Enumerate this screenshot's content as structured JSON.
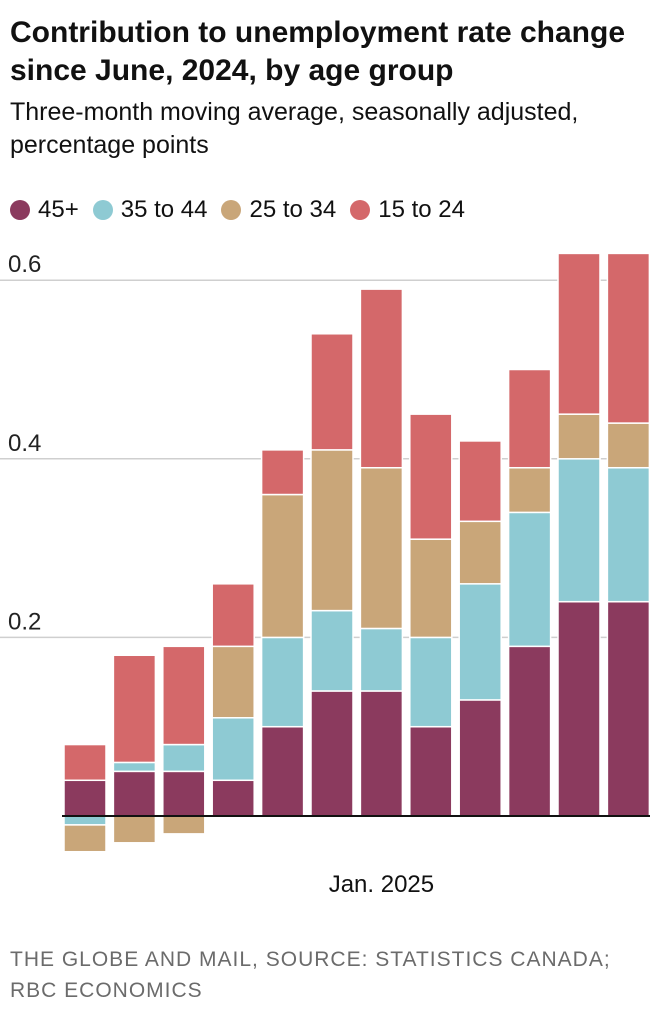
{
  "chart_data": {
    "type": "bar",
    "stacked": true,
    "title": "Contribution to unemployment rate change since June, 2024, by age group",
    "subtitle": "Three-month moving average, seasonally adjusted, percentage points",
    "x_tick_labels": [
      "Jan. 2025"
    ],
    "x_tick_index": 6,
    "ylim": [
      -0.05,
      0.65
    ],
    "y_ticks": [
      0.2,
      0.4,
      0.6
    ],
    "y_tick_labels": [
      "0.2",
      "0.4",
      "0.6"
    ],
    "grid": true,
    "legend_position": "top",
    "categories": [
      "",
      "",
      "",
      "",
      "",
      "",
      "",
      "",
      "",
      "",
      "",
      ""
    ],
    "series": [
      {
        "name": "45+",
        "color": "#8b3a5e",
        "values": [
          0.04,
          0.05,
          0.05,
          0.04,
          0.1,
          0.14,
          0.14,
          0.1,
          0.13,
          0.19,
          0.24,
          0.24
        ]
      },
      {
        "name": "35 to 44",
        "color": "#8ecad3",
        "values": [
          -0.01,
          0.01,
          0.03,
          0.07,
          0.1,
          0.09,
          0.07,
          0.1,
          0.13,
          0.15,
          0.16,
          0.15
        ]
      },
      {
        "name": "25 to 34",
        "color": "#c9a679",
        "values": [
          -0.03,
          -0.03,
          -0.02,
          0.08,
          0.16,
          0.18,
          0.18,
          0.11,
          0.07,
          0.05,
          0.05,
          0.05
        ]
      },
      {
        "name": "15 to 24",
        "color": "#d4686a",
        "values": [
          0.04,
          0.12,
          0.11,
          0.07,
          0.05,
          0.13,
          0.2,
          0.14,
          0.09,
          0.11,
          0.18,
          0.19
        ]
      }
    ]
  },
  "source": "THE GLOBE AND MAIL, SOURCE: STATISTICS CANADA; RBC ECONOMICS"
}
